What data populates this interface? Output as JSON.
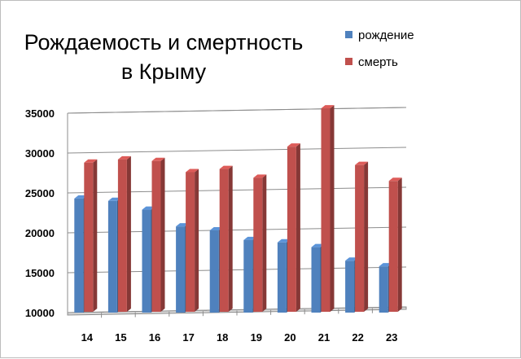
{
  "chart_data": {
    "type": "bar",
    "title_lines": [
      "Рождаемость и смертность",
      "в Крыму"
    ],
    "categories": [
      "14",
      "15",
      "16",
      "17",
      "18",
      "19",
      "20",
      "21",
      "22",
      "23"
    ],
    "series": [
      {
        "name": "рождение",
        "color": "#4f81bd",
        "values": [
          24300,
          24000,
          22900,
          20800,
          20300,
          19100,
          18800,
          18200,
          16500,
          15800
        ]
      },
      {
        "name": "смерть",
        "color": "#c0504d",
        "values": [
          28700,
          29100,
          28900,
          27500,
          27900,
          26800,
          30700,
          35500,
          28400,
          26400
        ]
      }
    ],
    "y_ticks": [
      "10000",
      "15000",
      "20000",
      "25000",
      "30000",
      "35000"
    ],
    "ylim": [
      10000,
      35000
    ],
    "grid": true,
    "legend": "top-right"
  }
}
